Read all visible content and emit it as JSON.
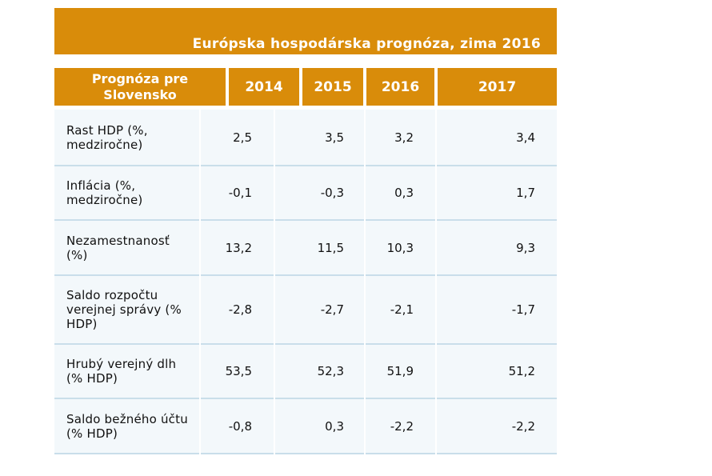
{
  "title": "Európska hospodárska prognóza, zima 2016",
  "header": {
    "label": "Prognóza pre Slovensko",
    "years": [
      "2014",
      "2015",
      "2016",
      "2017"
    ]
  },
  "rows": [
    {
      "label": "Rast HDP (%, medziročne)",
      "values": [
        "2,5",
        "3,5",
        "3,2",
        "3,4"
      ]
    },
    {
      "label": "Inflácia (%, medziročne)",
      "values": [
        "-0,1",
        "-0,3",
        "0,3",
        "1,7"
      ]
    },
    {
      "label": "Nezamestnanosť (%)",
      "values": [
        "13,2",
        "11,5",
        "10,3",
        "9,3"
      ]
    },
    {
      "label": "Saldo rozpočtu verejnej správy (% HDP)",
      "values": [
        "-2,8",
        "-2,7",
        "-2,1",
        "-1,7"
      ]
    },
    {
      "label": "Hrubý verejný dlh (% HDP)",
      "values": [
        "53,5",
        "52,3",
        "51,9",
        "51,2"
      ]
    },
    {
      "label": "Saldo bežného účtu (% HDP)",
      "values": [
        "-0,8",
        "0,3",
        "-2,2",
        "-2,2"
      ]
    }
  ],
  "colors": {
    "header_bg": "#d98c0a",
    "header_text": "#ffffff",
    "row_bg": "#f3f8fb",
    "row_border": "#c9deea"
  }
}
